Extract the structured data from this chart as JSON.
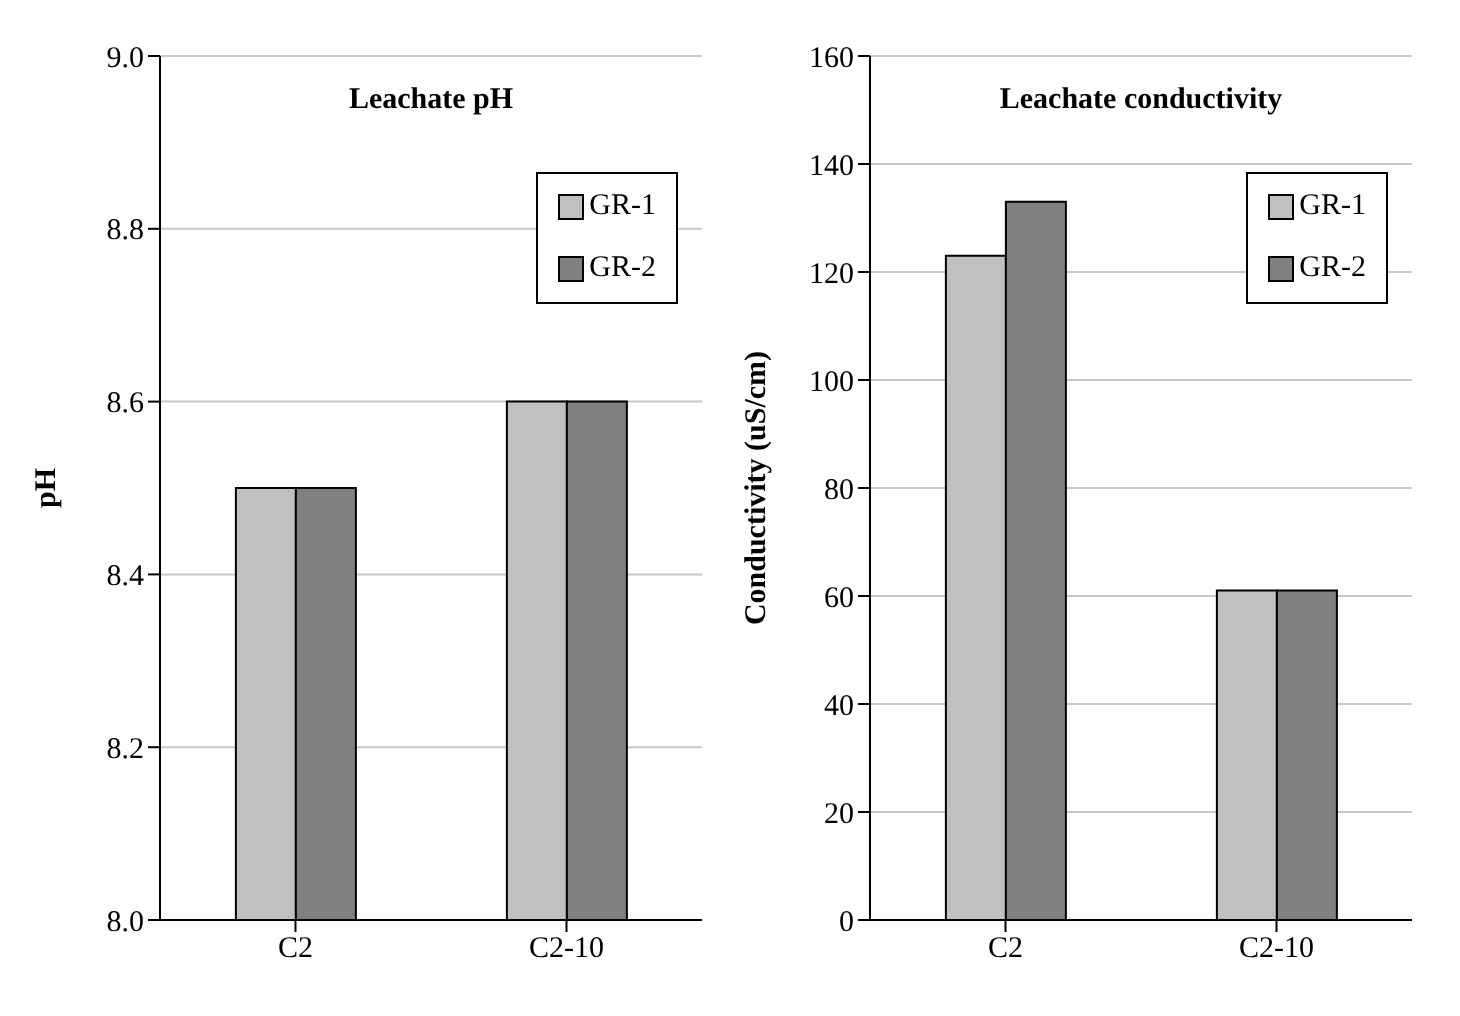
{
  "chart_data": [
    {
      "type": "bar",
      "title": "Leachate pH",
      "ylabel": "pH",
      "categories": [
        "C2",
        "C2-10"
      ],
      "series": [
        {
          "name": "GR-1",
          "color": "#c0c0c0",
          "values": [
            8.5,
            8.6
          ]
        },
        {
          "name": "GR-2",
          "color": "#808080",
          "values": [
            8.5,
            8.6
          ]
        }
      ],
      "ylim": [
        8.0,
        9.0
      ],
      "yticks": [
        {
          "value": 8.0,
          "label": "8.0"
        },
        8.2,
        8.4,
        8.6,
        8.8,
        {
          "value": 9.0,
          "label": "9.0"
        }
      ],
      "grid": "y",
      "legend": "top right"
    },
    {
      "type": "bar",
      "title": "Leachate conductivity",
      "ylabel": "Conductivity (uS/cm)",
      "categories": [
        "C2",
        "C2-10"
      ],
      "series": [
        {
          "name": "GR-1",
          "color": "#c0c0c0",
          "values": [
            123,
            61
          ]
        },
        {
          "name": "GR-2",
          "color": "#808080",
          "values": [
            133,
            61
          ]
        }
      ],
      "ylim": [
        0,
        160
      ],
      "yticks": [
        0,
        20,
        40,
        60,
        80,
        100,
        120,
        140,
        160
      ],
      "grid": "y",
      "legend": "top right"
    }
  ]
}
